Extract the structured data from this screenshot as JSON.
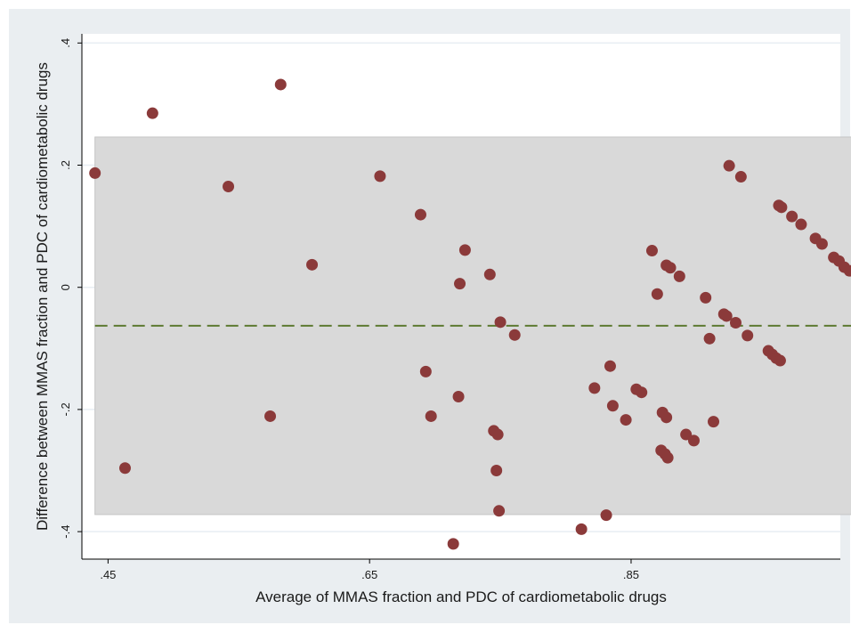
{
  "chart_data": {
    "type": "scatter",
    "title": "",
    "xlabel": "Average of MMAS fraction and PDC of cardiometabolic drugs",
    "ylabel": "Difference between MMAS fraction and PDC of cardiometabolic drugs",
    "xlim": [
      0.43,
      1.01
    ],
    "ylim": [
      -0.445,
      0.415
    ],
    "x_ticks": [
      0.45,
      0.65,
      0.85
    ],
    "x_tick_labels": [
      ".45",
      ".65",
      ".85"
    ],
    "y_ticks": [
      -0.4,
      -0.2,
      0,
      0.2,
      0.4
    ],
    "y_tick_labels": [
      "-.4",
      "-.2",
      "0",
      ".2",
      ".4"
    ],
    "grid": true,
    "mean_difference": -0.063,
    "limits_of_agreement": [
      -0.372,
      0.246
    ],
    "colors": {
      "points": "#8b3a3a",
      "mean_line": "#5d7a32",
      "agreement_band": "#d9d9d9",
      "plot_background": "#ffffff",
      "frame_background": "#eaeef1"
    },
    "series": [
      {
        "points": [
          [
            0.44,
            0.187
          ],
          [
            0.463,
            -0.296
          ],
          [
            0.484,
            0.285
          ],
          [
            0.542,
            0.165
          ],
          [
            0.574,
            -0.211
          ],
          [
            0.582,
            0.332
          ],
          [
            0.606,
            0.037
          ],
          [
            0.658,
            0.182
          ],
          [
            0.689,
            0.119
          ],
          [
            0.693,
            -0.138
          ],
          [
            0.697,
            -0.211
          ],
          [
            0.714,
            -0.42
          ],
          [
            0.718,
            -0.179
          ],
          [
            0.719,
            0.006
          ],
          [
            0.723,
            0.061
          ],
          [
            0.742,
            0.021
          ],
          [
            0.745,
            -0.235
          ],
          [
            0.747,
            -0.3
          ],
          [
            0.748,
            -0.241
          ],
          [
            0.749,
            -0.366
          ],
          [
            0.75,
            -0.057
          ],
          [
            0.761,
            -0.078
          ],
          [
            0.812,
            -0.396
          ],
          [
            0.822,
            -0.165
          ],
          [
            0.831,
            -0.373
          ],
          [
            0.834,
            -0.129
          ],
          [
            0.836,
            -0.194
          ],
          [
            0.846,
            -0.217
          ],
          [
            0.854,
            -0.167
          ],
          [
            0.858,
            -0.172
          ],
          [
            0.866,
            0.06
          ],
          [
            0.87,
            -0.011
          ],
          [
            0.873,
            -0.267
          ],
          [
            0.874,
            -0.205
          ],
          [
            0.876,
            -0.273
          ],
          [
            0.877,
            0.036
          ],
          [
            0.877,
            -0.213
          ],
          [
            0.878,
            -0.279
          ],
          [
            0.88,
            0.032
          ],
          [
            0.887,
            0.018
          ],
          [
            0.892,
            -0.241
          ],
          [
            0.898,
            -0.251
          ],
          [
            0.907,
            -0.017
          ],
          [
            0.91,
            -0.084
          ],
          [
            0.913,
            -0.22
          ],
          [
            0.921,
            -0.044
          ],
          [
            0.923,
            -0.047
          ],
          [
            0.925,
            0.199
          ],
          [
            0.93,
            -0.058
          ],
          [
            0.934,
            0.181
          ],
          [
            0.939,
            -0.079
          ],
          [
            0.955,
            -0.104
          ],
          [
            0.958,
            -0.11
          ],
          [
            0.961,
            -0.116
          ],
          [
            0.963,
            0.134
          ],
          [
            0.964,
            -0.12
          ],
          [
            0.965,
            0.131
          ],
          [
            0.973,
            0.116
          ],
          [
            0.98,
            0.103
          ],
          [
            0.991,
            0.08
          ],
          [
            0.996,
            0.071
          ],
          [
            1.005,
            0.049
          ],
          [
            1.009,
            0.043
          ],
          [
            1.013,
            0.033
          ],
          [
            1.017,
            0.027
          ],
          [
            1.025,
            0.014
          ],
          [
            1.029,
            0.006
          ],
          [
            1.032,
            0.0
          ]
        ]
      }
    ]
  }
}
